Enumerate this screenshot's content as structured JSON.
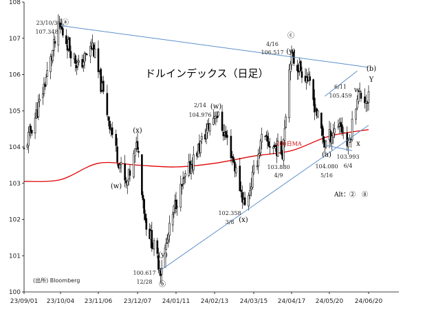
{
  "chart_data": {
    "type": "candlestick",
    "title": "ドルインデックス（日足）",
    "source": "(出所) Bloomberg",
    "alt_label": "Alt：②　⑧",
    "ylim": [
      100,
      108
    ],
    "y_ticks": [
      "100",
      "101",
      "102",
      "103",
      "104",
      "105",
      "106",
      "107",
      "108"
    ],
    "x_ticks": [
      "23/09/01",
      "23/10/04",
      "23/11/06",
      "23/12/07",
      "24/01/11",
      "24/02/13",
      "24/03/15",
      "24/04/17",
      "24/05/20",
      "24/06/20"
    ],
    "grid": false,
    "series": [
      {
        "name": "200日MA",
        "color": "#e00000"
      },
      {
        "color": "#000000"
      }
    ],
    "ma_points": [
      [
        "23/09/01",
        103.05
      ],
      [
        "23/10/04",
        103.1
      ],
      [
        "23/11/06",
        103.55
      ],
      [
        "23/12/07",
        103.5
      ],
      [
        "24/01/11",
        103.45
      ],
      [
        "24/02/13",
        103.55
      ],
      [
        "24/03/15",
        103.75
      ],
      [
        "24/04/17",
        103.9
      ],
      [
        "24/05/20",
        104.3
      ],
      [
        "24/06/20",
        104.48
      ]
    ],
    "price_path": [
      [
        "23/09/01",
        103.9
      ],
      [
        "23/09/15",
        105.2
      ],
      [
        "23/10/03",
        107.348
      ],
      [
        "23/10/20",
        106.2
      ],
      [
        "23/11/01",
        106.8
      ],
      [
        "23/11/20",
        103.9
      ],
      [
        "23/11/28",
        102.9
      ],
      [
        "23/12/07",
        104.1
      ],
      [
        "23/12/14",
        102.0
      ],
      [
        "23/12/28",
        100.617
      ],
      [
        "24/01/11",
        102.5
      ],
      [
        "24/01/25",
        103.6
      ],
      [
        "24/02/14",
        104.976
      ],
      [
        "24/02/25",
        104.0
      ],
      [
        "24/03/08",
        102.358
      ],
      [
        "24/03/22",
        104.2
      ],
      [
        "24/04/09",
        103.88
      ],
      [
        "24/04/16",
        106.517
      ],
      [
        "24/05/01",
        105.9
      ],
      [
        "24/05/16",
        104.08
      ],
      [
        "24/05/28",
        104.7
      ],
      [
        "24/06/04",
        103.993
      ],
      [
        "24/06/11",
        105.459
      ],
      [
        "24/06/20",
        105.3
      ]
    ],
    "trendlines": [
      {
        "from": [
          "23/10/04",
          107.35
        ],
        "to": [
          "24/06/20",
          106.2
        ],
        "color": "#5a8fc9"
      },
      {
        "from": [
          "23/12/28",
          100.6
        ],
        "to": [
          "24/06/20",
          104.6
        ],
        "color": "#5a8fc9"
      },
      {
        "from": [
          "24/05/16",
          105.4
        ],
        "to": [
          "24/06/11",
          106.1
        ],
        "color": "#5a8fc9"
      },
      {
        "from": [
          "24/05/16",
          104.05
        ],
        "to": [
          "24/06/07",
          103.9
        ],
        "color": "#5a8fc9"
      }
    ],
    "annotations": [
      {
        "text": "23/10/3",
        "style": "ann"
      },
      {
        "text": "107.348",
        "style": "ann"
      },
      {
        "text": "ⓐ",
        "style": "wave"
      },
      {
        "text": "(x)",
        "style": "wave"
      },
      {
        "text": "(w)",
        "style": "wave"
      },
      {
        "text": "2/14",
        "style": "ann"
      },
      {
        "text": "104.976",
        "style": "ann"
      },
      {
        "text": "(w)",
        "style": "wave"
      },
      {
        "text": "ⓒ",
        "style": "wave"
      },
      {
        "text": "4/16",
        "style": "ann"
      },
      {
        "text": "106.517",
        "style": "ann"
      },
      {
        "text": "(y)",
        "style": "wave"
      },
      {
        "text": "(b)",
        "style": "wave"
      },
      {
        "text": "Y",
        "style": "wave"
      },
      {
        "text": "6/11",
        "style": "ann"
      },
      {
        "text": "105.459",
        "style": "ann"
      },
      {
        "text": "w",
        "style": "wave"
      },
      {
        "text": "(a)",
        "style": "wave"
      },
      {
        "text": "x",
        "style": "wave"
      },
      {
        "text": "103.880",
        "style": "ann"
      },
      {
        "text": "4/9",
        "style": "ann"
      },
      {
        "text": "104.080",
        "style": "ann"
      },
      {
        "text": "5/16",
        "style": "ann"
      },
      {
        "text": "103.993",
        "style": "ann"
      },
      {
        "text": "6/4",
        "style": "ann"
      },
      {
        "text": "102.358",
        "style": "ann"
      },
      {
        "text": "3/8",
        "style": "ann"
      },
      {
        "text": "(x)",
        "style": "wave"
      },
      {
        "text": "100.617",
        "style": "ann"
      },
      {
        "text": "12/28",
        "style": "ann"
      },
      {
        "text": "(y)",
        "style": "wave"
      },
      {
        "text": "ⓑ",
        "style": "wave"
      },
      {
        "text": "200日MA",
        "style": "maLbl"
      }
    ]
  }
}
